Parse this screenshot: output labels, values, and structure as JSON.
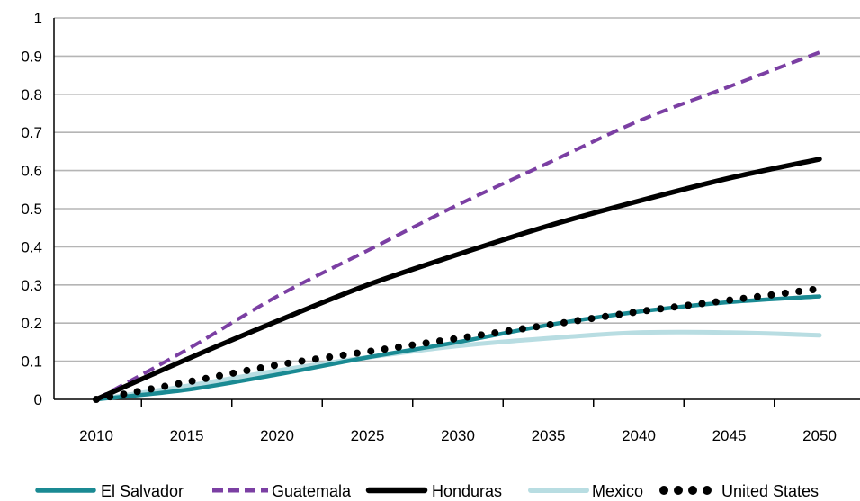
{
  "chart_data": {
    "type": "line",
    "title": "",
    "xlabel": "",
    "ylabel": "",
    "x": [
      2010,
      2015,
      2020,
      2025,
      2030,
      2035,
      2040,
      2045,
      2050
    ],
    "xlim": [
      2008,
      2053
    ],
    "ylim": [
      0,
      1
    ],
    "x_ticks": [
      "2010",
      "2015",
      "2020",
      "2025",
      "2030",
      "2035",
      "2040",
      "2045",
      "2050"
    ],
    "y_ticks": [
      "0",
      "0.1",
      "0.2",
      "0.3",
      "0.4",
      "0.5",
      "0.6",
      "0.7",
      "0.8",
      "0.9",
      "1"
    ],
    "grid": "horizontal",
    "legend_position": "bottom",
    "series": [
      {
        "name": "El Salvador",
        "color": "#1a8a93",
        "style": "solid-thin",
        "values": [
          0,
          0.025,
          0.065,
          0.11,
          0.15,
          0.195,
          0.23,
          0.255,
          0.27
        ]
      },
      {
        "name": "Guatemala",
        "color": "#7b3fa3",
        "style": "dashed",
        "values": [
          0,
          0.13,
          0.27,
          0.39,
          0.51,
          0.62,
          0.73,
          0.82,
          0.91
        ]
      },
      {
        "name": "Honduras",
        "color": "#000000",
        "style": "solid-thick",
        "values": [
          0,
          0.105,
          0.205,
          0.3,
          0.38,
          0.455,
          0.52,
          0.58,
          0.63
        ]
      },
      {
        "name": "Mexico",
        "color": "#b8dde2",
        "style": "solid-light",
        "values": [
          0,
          0.035,
          0.075,
          0.11,
          0.14,
          0.16,
          0.175,
          0.175,
          0.168
        ]
      },
      {
        "name": "United States",
        "color": "#000000",
        "style": "dotted",
        "values": [
          0,
          0.045,
          0.09,
          0.125,
          0.16,
          0.195,
          0.23,
          0.26,
          0.29
        ]
      }
    ]
  }
}
